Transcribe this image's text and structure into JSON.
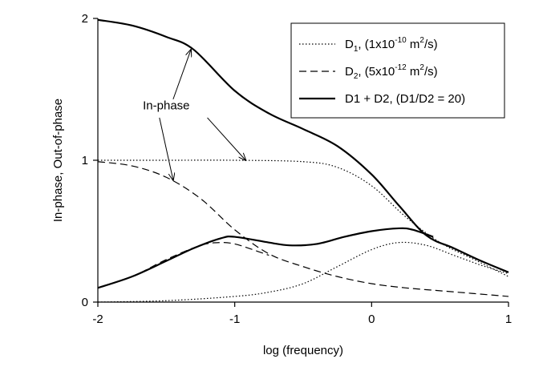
{
  "chart_data": {
    "type": "line",
    "xlabel": "log (frequency)",
    "ylabel": "In-phase, Out-of-phase",
    "xlim": [
      -2,
      1
    ],
    "ylim": [
      0,
      2
    ],
    "xticks": [
      -2,
      -1,
      0,
      1
    ],
    "yticks": [
      0,
      1,
      2
    ],
    "xtick_labels": [
      "-2",
      "-1",
      "0",
      "1"
    ],
    "ytick_labels": [
      "0",
      "1",
      "2"
    ],
    "grid": false,
    "legend_position": "top-right",
    "legend": [
      {
        "key": "d1",
        "pre": "D",
        "sub1": "1",
        "mid": ", (1x10",
        "sup": "-10",
        "post": " m",
        "sup2": "2",
        "tail": "/s)",
        "dash": "dotted",
        "color": "#000000"
      },
      {
        "key": "d2",
        "pre": "D",
        "sub1": "2",
        "mid": ", (5x10",
        "sup": "-12",
        "post": " m",
        "sup2": "2",
        "tail": "/s)",
        "dash": "dashed",
        "color": "#000000"
      },
      {
        "key": "sum",
        "text": "D1 + D2, (D1/D2 = 20)",
        "dash": "solid",
        "color": "#000000"
      }
    ],
    "series": [
      {
        "name": "D1, (1x10-10 m2/s) in-phase",
        "dash": "dotted",
        "width": 1.2,
        "x": [
          -2,
          -1.5,
          -1.0,
          -0.5,
          -0.25,
          0,
          0.25,
          0.5,
          0.75,
          1.0
        ],
        "y": [
          1.0,
          1.0,
          1.0,
          0.99,
          0.95,
          0.82,
          0.6,
          0.42,
          0.3,
          0.18
        ]
      },
      {
        "name": "D1, (1x10-10 m2/s) out-of-phase",
        "dash": "dotted",
        "width": 1.2,
        "x": [
          -2,
          -1.5,
          -1.0,
          -0.75,
          -0.5,
          -0.25,
          0,
          0.2,
          0.4,
          0.6,
          0.8,
          1.0
        ],
        "y": [
          0.0,
          0.01,
          0.04,
          0.07,
          0.13,
          0.25,
          0.37,
          0.42,
          0.4,
          0.33,
          0.26,
          0.2
        ]
      },
      {
        "name": "D2, (5x10-12 m2/s) in-phase",
        "dash": "dashed",
        "width": 1.2,
        "x": [
          -2,
          -1.75,
          -1.5,
          -1.25,
          -1.0,
          -0.75,
          -0.5,
          -0.25,
          0,
          0.25,
          0.5,
          0.75,
          1.0
        ],
        "y": [
          0.99,
          0.96,
          0.88,
          0.73,
          0.51,
          0.34,
          0.25,
          0.18,
          0.13,
          0.1,
          0.08,
          0.06,
          0.04
        ]
      },
      {
        "name": "D2, (5x10-12 m2/s) out-of-phase",
        "dash": "dashed",
        "width": 1.2,
        "x": [
          -2,
          -1.75,
          -1.5,
          -1.25,
          -1.1,
          -1.0,
          -0.9,
          -0.75
        ],
        "y": [
          0.1,
          0.18,
          0.3,
          0.4,
          0.42,
          0.41,
          0.38,
          0.33
        ]
      },
      {
        "name": "D1 + D2, (D1/D2 = 20) in-phase",
        "dash": "solid",
        "width": 2.2,
        "x": [
          -2,
          -1.75,
          -1.5,
          -1.3,
          -1.0,
          -0.75,
          -0.5,
          -0.25,
          0,
          0.2,
          0.4,
          0.6,
          0.8,
          1.0
        ],
        "y": [
          1.99,
          1.95,
          1.87,
          1.78,
          1.49,
          1.33,
          1.22,
          1.1,
          0.9,
          0.68,
          0.47,
          0.38,
          0.29,
          0.21
        ]
      },
      {
        "name": "D1 + D2, (D1/D2 = 20) out-of-phase",
        "dash": "solid",
        "width": 2.2,
        "x": [
          -2,
          -1.75,
          -1.5,
          -1.3,
          -1.1,
          -1.0,
          -0.75,
          -0.6,
          -0.4,
          -0.2,
          0,
          0.2,
          0.3,
          0.45
        ],
        "y": [
          0.1,
          0.18,
          0.29,
          0.38,
          0.45,
          0.46,
          0.42,
          0.4,
          0.41,
          0.46,
          0.5,
          0.52,
          0.51,
          0.46
        ]
      }
    ],
    "annotations": [
      {
        "text": "In-phase",
        "x": -1.5,
        "y": 1.36,
        "arrows": [
          {
            "from": [
              -1.45,
              1.43
            ],
            "to": [
              -1.32,
              1.78
            ]
          },
          {
            "from": [
              -1.55,
              1.3
            ],
            "to": [
              -1.45,
              0.86
            ]
          },
          {
            "from": [
              -1.2,
              1.3
            ],
            "to": [
              -0.92,
              1.0
            ]
          }
        ]
      }
    ]
  }
}
